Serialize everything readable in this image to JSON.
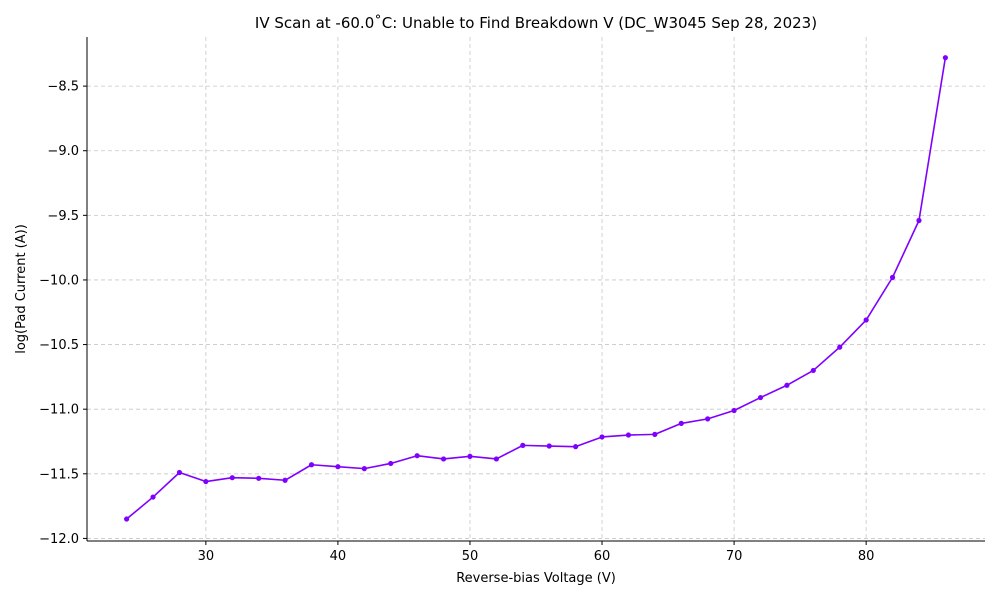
{
  "chart_data": {
    "type": "line",
    "title": "IV Scan at -60.0˚C: Unable to Find Breakdown V (DC_W3045 Sep 28, 2023)",
    "xlabel": "Reverse-bias Voltage (V)",
    "ylabel": "log(Pad Current (A))",
    "xlim": [
      21,
      89
    ],
    "ylim": [
      -12.02,
      -8.12
    ],
    "xticks": [
      30,
      40,
      50,
      60,
      70,
      80
    ],
    "yticks": [
      -12.0,
      -11.5,
      -11.0,
      -10.5,
      -10.0,
      -9.5,
      -9.0,
      -8.5
    ],
    "ytick_labels": [
      "−12.0",
      "−11.5",
      "−11.0",
      "−10.5",
      "−10.0",
      "−9.5",
      "−9.0",
      "−8.5"
    ],
    "grid": true,
    "color": "#7f00ff",
    "x": [
      24,
      26,
      28,
      30,
      32,
      34,
      36,
      38,
      40,
      42,
      44,
      46,
      48,
      50,
      52,
      54,
      56,
      58,
      60,
      62,
      64,
      66,
      68,
      70,
      72,
      74,
      76,
      78,
      80,
      82,
      84,
      86
    ],
    "y": [
      -11.85,
      -11.68,
      -11.49,
      -11.56,
      -11.53,
      -11.535,
      -11.55,
      -11.43,
      -11.445,
      -11.46,
      -11.42,
      -11.36,
      -11.385,
      -11.365,
      -11.385,
      -11.28,
      -11.285,
      -11.29,
      -11.215,
      -11.2,
      -11.195,
      -11.11,
      -11.075,
      -11.01,
      -10.91,
      -10.815,
      -10.7,
      -10.52,
      -10.31,
      -9.98,
      -9.54,
      -8.28
    ]
  }
}
